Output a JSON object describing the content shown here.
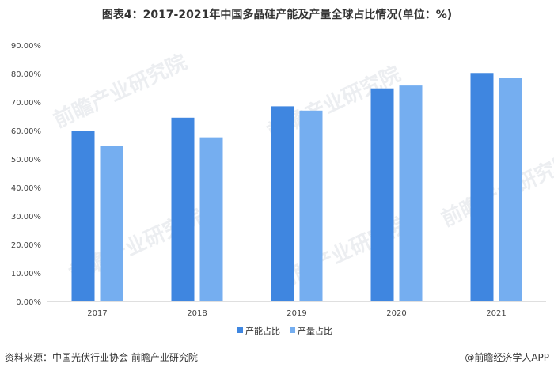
{
  "title": "图表4：2017-2021年中国多晶硅产能及产量全球占比情况(单位：%)",
  "footer": {
    "source": "资料来源：中国光伏行业协会 前瞻产业研究院",
    "brand": "@前瞻经济学人APP"
  },
  "watermark": "前瞻产业研究院",
  "colors": {
    "capacity": "#3f86e0",
    "output": "#75aef0",
    "axis": "#bfbfbf"
  },
  "chart_data": {
    "type": "bar",
    "categories": [
      "2017",
      "2018",
      "2019",
      "2020",
      "2021"
    ],
    "series": [
      {
        "name": "产能占比",
        "values": [
          60.0,
          64.5,
          68.5,
          74.8,
          80.2
        ]
      },
      {
        "name": "产量占比",
        "values": [
          54.6,
          57.6,
          67.0,
          75.8,
          78.5
        ]
      }
    ],
    "ylim": [
      0,
      90
    ],
    "yticks": [
      "0.00%",
      "10.00%",
      "20.00%",
      "30.00%",
      "40.00%",
      "50.00%",
      "60.00%",
      "70.00%",
      "80.00%",
      "90.00%"
    ],
    "grid": false,
    "legend": "bottom-center"
  }
}
